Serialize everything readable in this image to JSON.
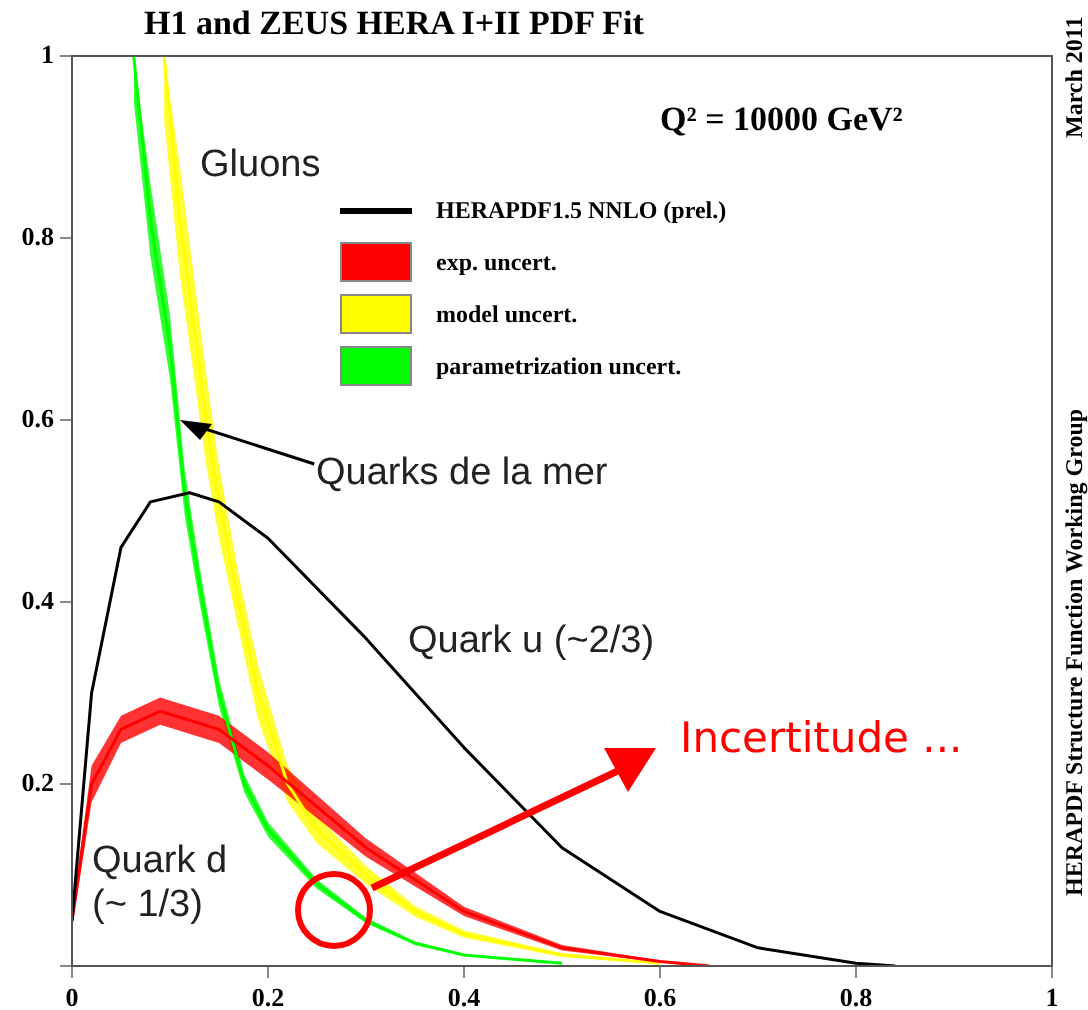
{
  "chart_data": {
    "type": "line",
    "title": "H1 and ZEUS HERA I+II PDF Fit",
    "annotations": [
      "Q² = 10000 GeV²",
      "Gluons",
      {
        "text": "Quarks de la mer",
        "x": 0.11,
        "y": 0.6
      },
      "Quark u (~2/3)",
      "Quark d\n(~ 1/3)",
      "Incertitude ...",
      "March 2011",
      "HERAPDF Structure Function Working Group"
    ],
    "xlim": [
      0,
      1
    ],
    "ylim": [
      0,
      1
    ],
    "xticks": [
      0,
      0.2,
      0.4,
      0.6,
      0.8,
      1
    ],
    "yticks": [
      {
        "value": 0,
        "label": null
      },
      0.2,
      0.4,
      0.6,
      0.8,
      1
    ],
    "grid": false,
    "legend": "top right",
    "marker": "none",
    "series": [
      {
        "name": "HERAPDF1.5 NNLO (prel.)",
        "color": "#000000",
        "x": [
          0,
          0.02,
          0.05,
          0.08,
          0.12,
          0.15,
          0.2,
          0.3,
          0.4,
          0.5,
          0.6,
          0.7,
          0.8,
          0.84
        ],
        "values": [
          0.05,
          0.3,
          0.46,
          0.51,
          0.52,
          0.51,
          0.47,
          0.36,
          0.24,
          0.13,
          0.06,
          0.02,
          0.003,
          0
        ]
      },
      {
        "name": "exp. uncert.",
        "color": "#ff0000",
        "x": [
          0,
          0.02,
          0.05,
          0.09,
          0.15,
          0.2,
          0.3,
          0.4,
          0.5,
          0.6,
          0.65
        ],
        "values": [
          0.05,
          0.2,
          0.26,
          0.28,
          0.26,
          0.22,
          0.13,
          0.06,
          0.02,
          0.005,
          0
        ],
        "lower": [
          0.04,
          0.18,
          0.245,
          0.265,
          0.245,
          0.205,
          0.12,
          0.055,
          0.017,
          0.004,
          0
        ],
        "upper": [
          0.06,
          0.22,
          0.275,
          0.295,
          0.275,
          0.235,
          0.14,
          0.065,
          0.023,
          0.006,
          0.001
        ]
      },
      {
        "name": "model uncert.",
        "color": "#ffff00",
        "x": [
          0.094,
          0.11,
          0.137,
          0.15,
          0.17,
          0.19,
          0.22,
          0.25,
          0.3,
          0.35,
          0.4,
          0.5,
          0.6
        ],
        "values": [
          1.0,
          0.82,
          0.6,
          0.51,
          0.4,
          0.3,
          0.2,
          0.15,
          0.1,
          0.06,
          0.035,
          0.012,
          0.003
        ],
        "lower": [
          0.93,
          0.76,
          0.55,
          0.47,
          0.37,
          0.27,
          0.18,
          0.135,
          0.09,
          0.054,
          0.031,
          0.01,
          0.002
        ],
        "upper": [
          1.0,
          0.88,
          0.65,
          0.55,
          0.43,
          0.33,
          0.22,
          0.165,
          0.11,
          0.066,
          0.039,
          0.014,
          0.004
        ]
      },
      {
        "name": "parametrization uncert.",
        "color": "#00ff00",
        "x": [
          0.063,
          0.08,
          0.1,
          0.115,
          0.13,
          0.15,
          0.176,
          0.2,
          0.25,
          0.3,
          0.35,
          0.4,
          0.5
        ],
        "values": [
          1.0,
          0.82,
          0.68,
          0.52,
          0.42,
          0.3,
          0.2,
          0.15,
          0.09,
          0.05,
          0.025,
          0.012,
          0.003
        ],
        "lower": [
          0.95,
          0.78,
          0.645,
          0.495,
          0.4,
          0.285,
          0.19,
          0.142,
          0.085,
          0.047,
          0.023,
          0.011,
          0.002
        ],
        "upper": [
          1.0,
          0.86,
          0.715,
          0.545,
          0.44,
          0.315,
          0.21,
          0.158,
          0.095,
          0.053,
          0.027,
          0.013,
          0.004
        ]
      }
    ]
  }
}
